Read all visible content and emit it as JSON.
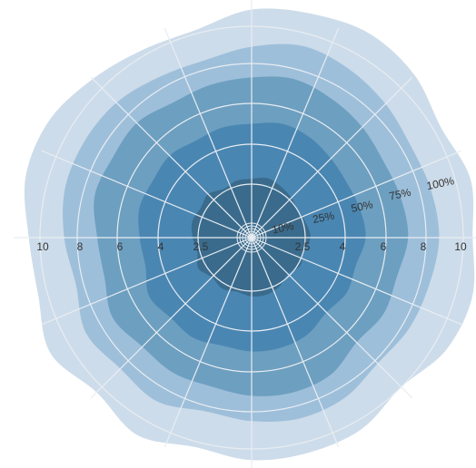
{
  "chart_data": {
    "type": "radial-area",
    "title": "",
    "radial_axis": {
      "ticks": [
        {
          "value": 2.5,
          "label": "2.5"
        },
        {
          "value": 4,
          "label": "4"
        },
        {
          "value": 6,
          "label": "6"
        },
        {
          "value": 8,
          "label": "8"
        },
        {
          "value": 10,
          "label": "10"
        }
      ]
    },
    "band_labels": [
      "10%",
      "25%",
      "50%",
      "75%",
      "100%"
    ],
    "angular_spokes": 16,
    "grid": true,
    "colors": {
      "bands": [
        "#cddcea",
        "#9ebfda",
        "#6d9fc0",
        "#4a86b2",
        "#3a6b8c",
        "#355f7e"
      ],
      "grid": "#e8edf2",
      "text": "#333333"
    },
    "series": [
      {
        "name": "100%",
        "color": "#cddcea",
        "values": [
          10.9,
          11.1,
          11.3,
          11.0,
          10.4,
          10.8,
          10.5,
          10.9,
          10.7,
          10.0,
          10.5,
          10.6,
          10.6,
          10.3,
          10.9,
          10.4,
          11.1,
          10.5,
          10.6,
          11.2,
          11.2,
          10.7,
          10.3,
          10.2
        ]
      },
      {
        "name": "75%",
        "color": "#9ebfda",
        "values": [
          8.9,
          9.3,
          9.1,
          8.8,
          8.5,
          8.6,
          8.7,
          8.5,
          8.4,
          8.2,
          8.6,
          8.7,
          8.5,
          8.3,
          8.8,
          8.6,
          8.9,
          8.4,
          8.7,
          9.0,
          9.0,
          8.9,
          8.6,
          8.5
        ]
      },
      {
        "name": "50%",
        "color": "#6d9fc0",
        "values": [
          7.3,
          7.5,
          7.3,
          7.1,
          6.9,
          7.0,
          7.1,
          6.8,
          6.9,
          6.7,
          7.2,
          7.3,
          7.2,
          7.0,
          7.1,
          7.0,
          7.3,
          6.9,
          7.0,
          7.4,
          7.3,
          7.4,
          7.1,
          7.2
        ]
      },
      {
        "name": "25%",
        "color": "#4a86b2",
        "values": [
          5.0,
          5.2,
          5.1,
          4.9,
          4.8,
          4.9,
          5.0,
          4.7,
          4.8,
          4.6,
          4.9,
          5.0,
          5.0,
          4.9,
          5.1,
          5.0,
          5.2,
          4.8,
          4.9,
          5.1,
          5.0,
          5.1,
          4.9,
          5.0
        ]
      },
      {
        "name": "10%",
        "color": "#3a6b8c",
        "values": [
          2.7,
          2.8,
          2.7,
          2.6,
          2.5,
          2.6,
          2.7,
          2.5,
          2.6,
          2.4,
          2.6,
          2.7,
          2.7,
          2.6,
          2.7,
          2.6,
          2.8,
          2.6,
          2.7,
          2.8,
          2.7,
          2.8,
          2.6,
          2.7
        ]
      }
    ]
  }
}
